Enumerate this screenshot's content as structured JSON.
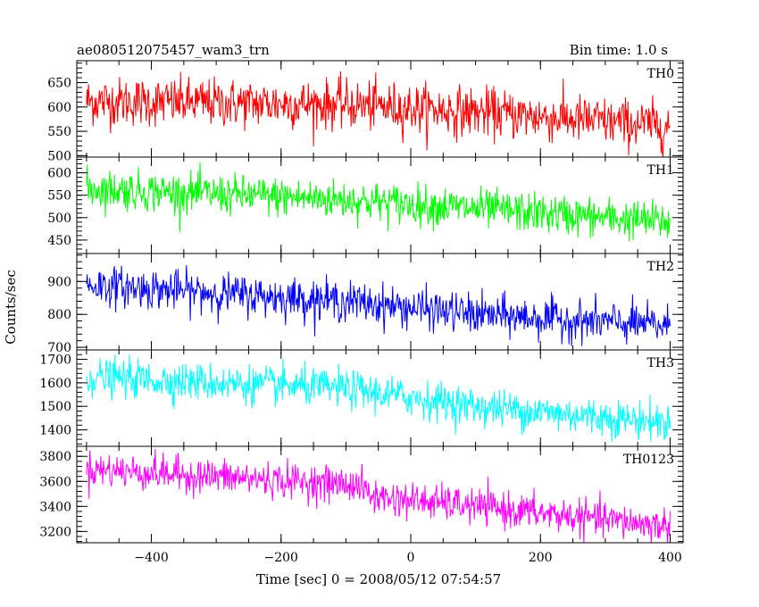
{
  "chart_data": {
    "type": "line",
    "title": "ae080512075457_wam3_trn",
    "subtitle": "Bin time: 1.0 s",
    "xlabel": "Time [sec] 0 = 2008/05/12 07:54:57",
    "ylabel": "Counts/sec",
    "xlim": [
      -515,
      420
    ],
    "xticks": [
      -400,
      -200,
      0,
      200,
      400
    ],
    "x_range_data": [
      -500,
      400
    ],
    "bin_time": 1.0,
    "panels": [
      {
        "name": "TH0",
        "color": "#ff0000",
        "ylim": [
          497,
          695
        ],
        "yticks": [
          500,
          550,
          600,
          650
        ],
        "trend": [
          [
            -500,
            612
          ],
          [
            -100,
            605
          ],
          [
            100,
            590
          ],
          [
            400,
            560
          ]
        ],
        "noise_sd": 25
      },
      {
        "name": "TH1",
        "color": "#00ff00",
        "ylim": [
          420,
          635
        ],
        "yticks": [
          450,
          500,
          550,
          600
        ],
        "trend": [
          [
            -500,
            565
          ],
          [
            -100,
            540
          ],
          [
            100,
            520
          ],
          [
            400,
            490
          ]
        ],
        "noise_sd": 22
      },
      {
        "name": "TH2",
        "color": "#0000ff",
        "ylim": [
          692,
          985
        ],
        "yticks": [
          700,
          800,
          900
        ],
        "trend": [
          [
            -500,
            890
          ],
          [
            -100,
            840
          ],
          [
            100,
            800
          ],
          [
            400,
            765
          ]
        ],
        "noise_sd": 30
      },
      {
        "name": "TH3",
        "color": "#00ffff",
        "ylim": [
          1330,
          1740
        ],
        "yticks": [
          1400,
          1500,
          1600,
          1700
        ],
        "trend": [
          [
            -500,
            1625
          ],
          [
            -100,
            1575
          ],
          [
            100,
            1500
          ],
          [
            400,
            1430
          ]
        ],
        "noise_sd": 40
      },
      {
        "name": "TH0123",
        "color": "#ff00ff",
        "ylim": [
          3110,
          3880
        ],
        "yticks": [
          3200,
          3400,
          3600,
          3800
        ],
        "trend": [
          [
            -500,
            3700
          ],
          [
            -80,
            3570
          ],
          [
            -60,
            3480
          ],
          [
            100,
            3400
          ],
          [
            400,
            3240
          ]
        ],
        "noise_sd": 70
      }
    ]
  }
}
